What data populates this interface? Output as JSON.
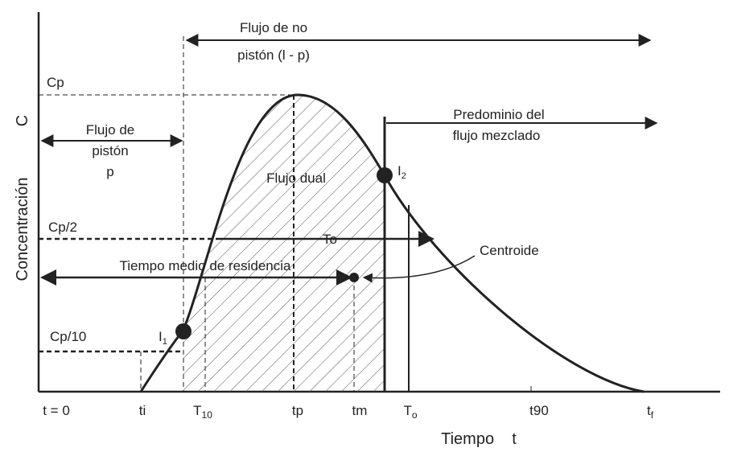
{
  "labels": {
    "no_piston_1": "Flujo de no",
    "no_piston_2": "pistón (l - p)",
    "cp": "Cp",
    "c_axis": "C",
    "concentracion": "Concentración",
    "predominio_1": "Predominio del",
    "predominio_2": "flujo mezclado",
    "piston_1": "Flujo de",
    "piston_2": "pistón",
    "piston_3": "p",
    "flujo_dual": "Flujo dual",
    "i2": {
      "main": "I",
      "sub": "2"
    },
    "cp2": "Cp/2",
    "to_mid": "To",
    "centroide": "Centroide",
    "tiempo_medio": "Tiempo medio de residencia",
    "cp10": "Cp/10",
    "i1": {
      "main": "I",
      "sub": "1"
    },
    "x_axis": "Tiempo    t"
  },
  "x_ticks": [
    {
      "main": "t = 0",
      "sub": ""
    },
    {
      "main": "ti",
      "sub": ""
    },
    {
      "main": "T",
      "sub": "10"
    },
    {
      "main": "tp",
      "sub": ""
    },
    {
      "main": "tm",
      "sub": ""
    },
    {
      "main": "T",
      "sub": "o"
    },
    {
      "main": "t90",
      "sub": ""
    },
    {
      "main": "t",
      "sub": "f"
    }
  ]
}
